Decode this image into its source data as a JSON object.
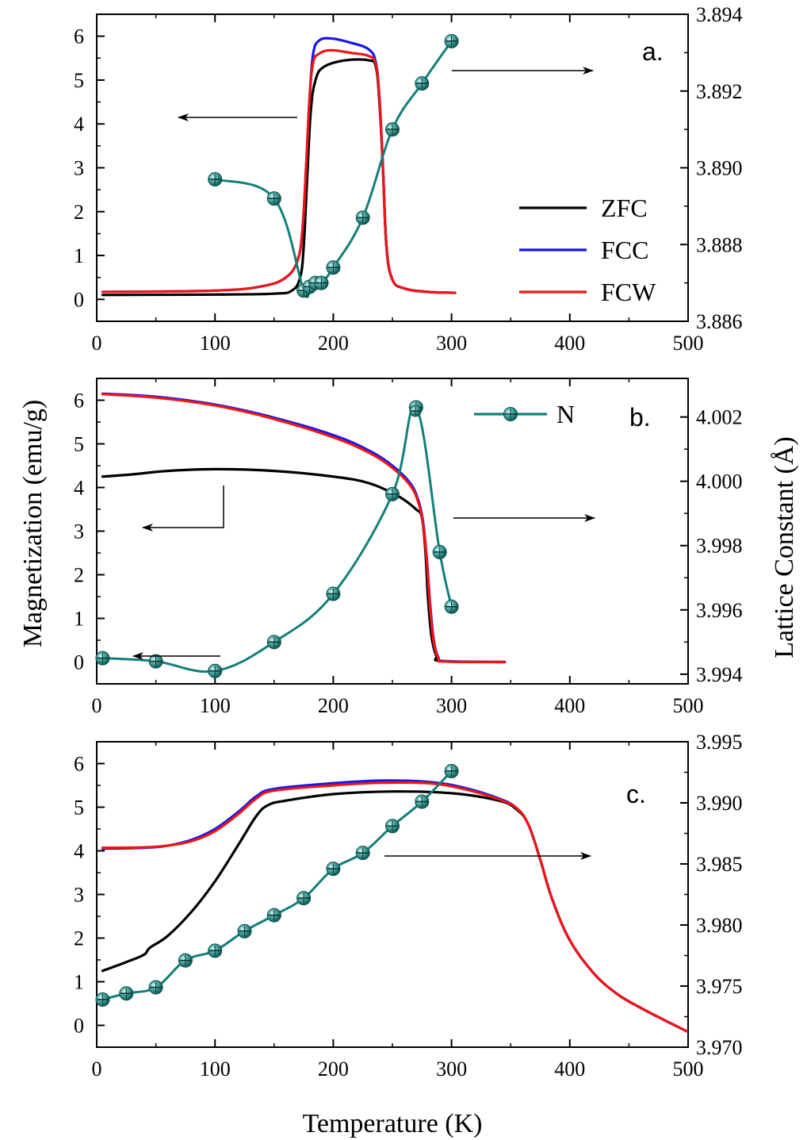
{
  "figure": {
    "xlabel": "Temperature (K)",
    "ylabel_left": "Magnetization (emu/g)",
    "ylabel_right": "Lattice Constant (Å)"
  },
  "colors": {
    "ZFC": "#000000",
    "FCC": "#1515ee",
    "FCW": "#ee1515",
    "lattice": "#137f7a"
  },
  "chart_data": [
    {
      "type": "line",
      "panel": "a.",
      "xlim": [
        0,
        500
      ],
      "ylim_left": [
        -0.5,
        6.5
      ],
      "ylim_right": [
        3.886,
        3.894
      ],
      "xticks": [
        0,
        100,
        200,
        300,
        400,
        500
      ],
      "yticks_left": [
        0,
        1,
        2,
        3,
        4,
        5,
        6
      ],
      "yticks_right": [
        "3.886",
        "3.888",
        "3.890",
        "3.892",
        "3.894"
      ],
      "legend": [
        "ZFC",
        "FCC",
        "FCW"
      ],
      "series": [
        {
          "name": "ZFC",
          "axis": "left",
          "points": [
            [
              5,
              0.1
            ],
            [
              100,
              0.11
            ],
            [
              150,
              0.13
            ],
            [
              165,
              0.2
            ],
            [
              172,
              0.5
            ],
            [
              175,
              1.2
            ],
            [
              178,
              2.8
            ],
            [
              181,
              4.3
            ],
            [
              185,
              5.0
            ],
            [
              192,
              5.3
            ],
            [
              210,
              5.45
            ],
            [
              230,
              5.45
            ],
            [
              236,
              5.3
            ],
            [
              239,
              4.5
            ],
            [
              242,
              3.0
            ],
            [
              245,
              1.2
            ],
            [
              250,
              0.45
            ],
            [
              260,
              0.25
            ],
            [
              280,
              0.17
            ],
            [
              303,
              0.15
            ]
          ]
        },
        {
          "name": "FCC",
          "axis": "left",
          "points": [
            [
              5,
              0.17
            ],
            [
              100,
              0.2
            ],
            [
              140,
              0.3
            ],
            [
              160,
              0.5
            ],
            [
              170,
              0.9
            ],
            [
              174,
              1.6
            ],
            [
              177,
              3.0
            ],
            [
              180,
              4.6
            ],
            [
              183,
              5.6
            ],
            [
              188,
              5.9
            ],
            [
              198,
              5.95
            ],
            [
              215,
              5.85
            ],
            [
              230,
              5.7
            ],
            [
              236,
              5.4
            ],
            [
              239,
              4.6
            ],
            [
              242,
              3.0
            ],
            [
              245,
              1.2
            ],
            [
              250,
              0.45
            ],
            [
              260,
              0.25
            ],
            [
              280,
              0.17
            ],
            [
              303,
              0.15
            ]
          ]
        },
        {
          "name": "FCW",
          "axis": "left",
          "points": [
            [
              5,
              0.17
            ],
            [
              100,
              0.2
            ],
            [
              140,
              0.3
            ],
            [
              160,
              0.5
            ],
            [
              170,
              0.9
            ],
            [
              174,
              1.6
            ],
            [
              177,
              3.0
            ],
            [
              180,
              4.6
            ],
            [
              183,
              5.4
            ],
            [
              188,
              5.6
            ],
            [
              198,
              5.68
            ],
            [
              215,
              5.62
            ],
            [
              230,
              5.55
            ],
            [
              236,
              5.35
            ],
            [
              239,
              4.6
            ],
            [
              242,
              3.0
            ],
            [
              245,
              1.2
            ],
            [
              250,
              0.45
            ],
            [
              260,
              0.25
            ],
            [
              280,
              0.17
            ],
            [
              303,
              0.15
            ]
          ]
        },
        {
          "name": "",
          "axis": "right",
          "markers": true,
          "points": [
            [
              100,
              3.8897
            ],
            [
              150,
              3.8892
            ],
            [
              175,
              3.8868
            ],
            [
              180,
              3.8869
            ],
            [
              185,
              3.887
            ],
            [
              190,
              3.887
            ],
            [
              200,
              3.8874
            ],
            [
              225,
              3.8887
            ],
            [
              250,
              3.891
            ],
            [
              275,
              3.8922
            ],
            [
              300,
              3.8933
            ]
          ]
        }
      ]
    },
    {
      "type": "line",
      "panel": "b.",
      "xlim": [
        0,
        500
      ],
      "ylim_left": [
        -0.5,
        6.5
      ],
      "ylim_right": [
        3.9937,
        4.0032
      ],
      "xticks": [
        0,
        100,
        200,
        300,
        400,
        500
      ],
      "yticks_left": [
        0,
        1,
        2,
        3,
        4,
        5,
        6
      ],
      "yticks_right": [
        "3.994",
        "3.996",
        "3.998",
        "4.000",
        "4.002"
      ],
      "legend": [
        "N"
      ],
      "series": [
        {
          "name": "ZFC",
          "axis": "left",
          "points": [
            [
              5,
              4.25
            ],
            [
              30,
              4.3
            ],
            [
              60,
              4.38
            ],
            [
              100,
              4.42
            ],
            [
              150,
              4.38
            ],
            [
              200,
              4.25
            ],
            [
              230,
              4.1
            ],
            [
              255,
              3.8
            ],
            [
              270,
              3.5
            ],
            [
              275,
              3.3
            ],
            [
              278,
              2.5
            ],
            [
              280,
              1.5
            ],
            [
              283,
              0.6
            ],
            [
              287,
              0.15
            ],
            [
              292,
              0.02
            ],
            [
              345,
              0.0
            ]
          ]
        },
        {
          "name": "FCC",
          "axis": "left",
          "points": [
            [
              5,
              6.15
            ],
            [
              50,
              6.08
            ],
            [
              100,
              5.9
            ],
            [
              150,
              5.6
            ],
            [
              200,
              5.2
            ],
            [
              230,
              4.85
            ],
            [
              250,
              4.5
            ],
            [
              265,
              4.1
            ],
            [
              272,
              3.7
            ],
            [
              276,
              3.2
            ],
            [
              279,
              2.4
            ],
            [
              282,
              1.3
            ],
            [
              285,
              0.5
            ],
            [
              289,
              0.1
            ],
            [
              295,
              0.02
            ],
            [
              345,
              0.0
            ]
          ]
        },
        {
          "name": "FCW",
          "axis": "left",
          "points": [
            [
              5,
              6.14
            ],
            [
              50,
              6.06
            ],
            [
              100,
              5.88
            ],
            [
              150,
              5.57
            ],
            [
              200,
              5.15
            ],
            [
              230,
              4.8
            ],
            [
              250,
              4.45
            ],
            [
              265,
              4.05
            ],
            [
              272,
              3.65
            ],
            [
              276,
              3.15
            ],
            [
              279,
              2.35
            ],
            [
              282,
              1.2
            ],
            [
              285,
              0.45
            ],
            [
              289,
              0.08
            ],
            [
              295,
              0.01
            ],
            [
              345,
              0.0
            ]
          ]
        },
        {
          "name": "N",
          "axis": "right",
          "markers": true,
          "points": [
            [
              5,
              3.9945
            ],
            [
              50,
              3.9944
            ],
            [
              100,
              3.9941
            ],
            [
              150,
              3.995
            ],
            [
              200,
              3.9965
            ],
            [
              250,
              3.9996
            ],
            [
              270,
              4.0023
            ],
            [
              290,
              3.9978
            ],
            [
              300,
              3.9961
            ]
          ]
        }
      ]
    },
    {
      "type": "line",
      "panel": "c.",
      "xlim": [
        0,
        500
      ],
      "ylim_left": [
        -0.5,
        6.5
      ],
      "ylim_right": [
        3.97,
        3.995
      ],
      "xticks": [
        0,
        100,
        200,
        300,
        400,
        500
      ],
      "yticks_left": [
        0,
        1,
        2,
        3,
        4,
        5,
        6
      ],
      "yticks_right": [
        "3.970",
        "3.975",
        "3.980",
        "3.985",
        "3.990",
        "3.995"
      ],
      "series": [
        {
          "name": "ZFC",
          "axis": "left",
          "points": [
            [
              5,
              1.25
            ],
            [
              25,
              1.45
            ],
            [
              40,
              1.62
            ],
            [
              45,
              1.78
            ],
            [
              60,
              2.05
            ],
            [
              80,
              2.6
            ],
            [
              100,
              3.3
            ],
            [
              120,
              4.15
            ],
            [
              135,
              4.8
            ],
            [
              145,
              5.05
            ],
            [
              160,
              5.15
            ],
            [
              200,
              5.3
            ],
            [
              250,
              5.36
            ],
            [
              300,
              5.32
            ],
            [
              340,
              5.15
            ],
            [
              355,
              4.95
            ],
            [
              365,
              4.6
            ],
            [
              375,
              3.8
            ],
            [
              385,
              2.9
            ],
            [
              400,
              1.95
            ],
            [
              420,
              1.2
            ],
            [
              440,
              0.72
            ],
            [
              460,
              0.4
            ],
            [
              480,
              0.12
            ],
            [
              500,
              -0.15
            ]
          ]
        },
        {
          "name": "FCC",
          "axis": "left",
          "points": [
            [
              5,
              4.05
            ],
            [
              40,
              4.07
            ],
            [
              60,
              4.12
            ],
            [
              80,
              4.25
            ],
            [
              100,
              4.5
            ],
            [
              120,
              4.9
            ],
            [
              135,
              5.25
            ],
            [
              150,
              5.42
            ],
            [
              200,
              5.55
            ],
            [
              240,
              5.61
            ],
            [
              280,
              5.58
            ],
            [
              310,
              5.45
            ],
            [
              340,
              5.2
            ],
            [
              355,
              4.98
            ],
            [
              365,
              4.6
            ],
            [
              375,
              3.8
            ],
            [
              385,
              2.9
            ],
            [
              400,
              1.95
            ],
            [
              420,
              1.2
            ],
            [
              440,
              0.72
            ],
            [
              460,
              0.4
            ],
            [
              480,
              0.12
            ],
            [
              500,
              -0.15
            ]
          ]
        },
        {
          "name": "FCW",
          "axis": "left",
          "points": [
            [
              5,
              4.07
            ],
            [
              40,
              4.08
            ],
            [
              60,
              4.12
            ],
            [
              80,
              4.22
            ],
            [
              100,
              4.45
            ],
            [
              120,
              4.85
            ],
            [
              135,
              5.2
            ],
            [
              150,
              5.38
            ],
            [
              200,
              5.5
            ],
            [
              240,
              5.56
            ],
            [
              280,
              5.55
            ],
            [
              310,
              5.42
            ],
            [
              340,
              5.18
            ],
            [
              355,
              4.98
            ],
            [
              365,
              4.6
            ],
            [
              375,
              3.8
            ],
            [
              385,
              2.9
            ],
            [
              400,
              1.95
            ],
            [
              420,
              1.2
            ],
            [
              440,
              0.72
            ],
            [
              460,
              0.4
            ],
            [
              480,
              0.12
            ],
            [
              500,
              -0.15
            ]
          ]
        },
        {
          "name": "",
          "axis": "right",
          "markers": true,
          "points": [
            [
              5,
              3.9739
            ],
            [
              25,
              3.9744
            ],
            [
              50,
              3.9749
            ],
            [
              75,
              3.9771
            ],
            [
              100,
              3.9779
            ],
            [
              125,
              3.9795
            ],
            [
              150,
              3.9808
            ],
            [
              175,
              3.9822
            ],
            [
              200,
              3.9846
            ],
            [
              225,
              3.9859
            ],
            [
              250,
              3.9881
            ],
            [
              275,
              3.9901
            ],
            [
              300,
              3.9926
            ]
          ]
        }
      ]
    }
  ]
}
